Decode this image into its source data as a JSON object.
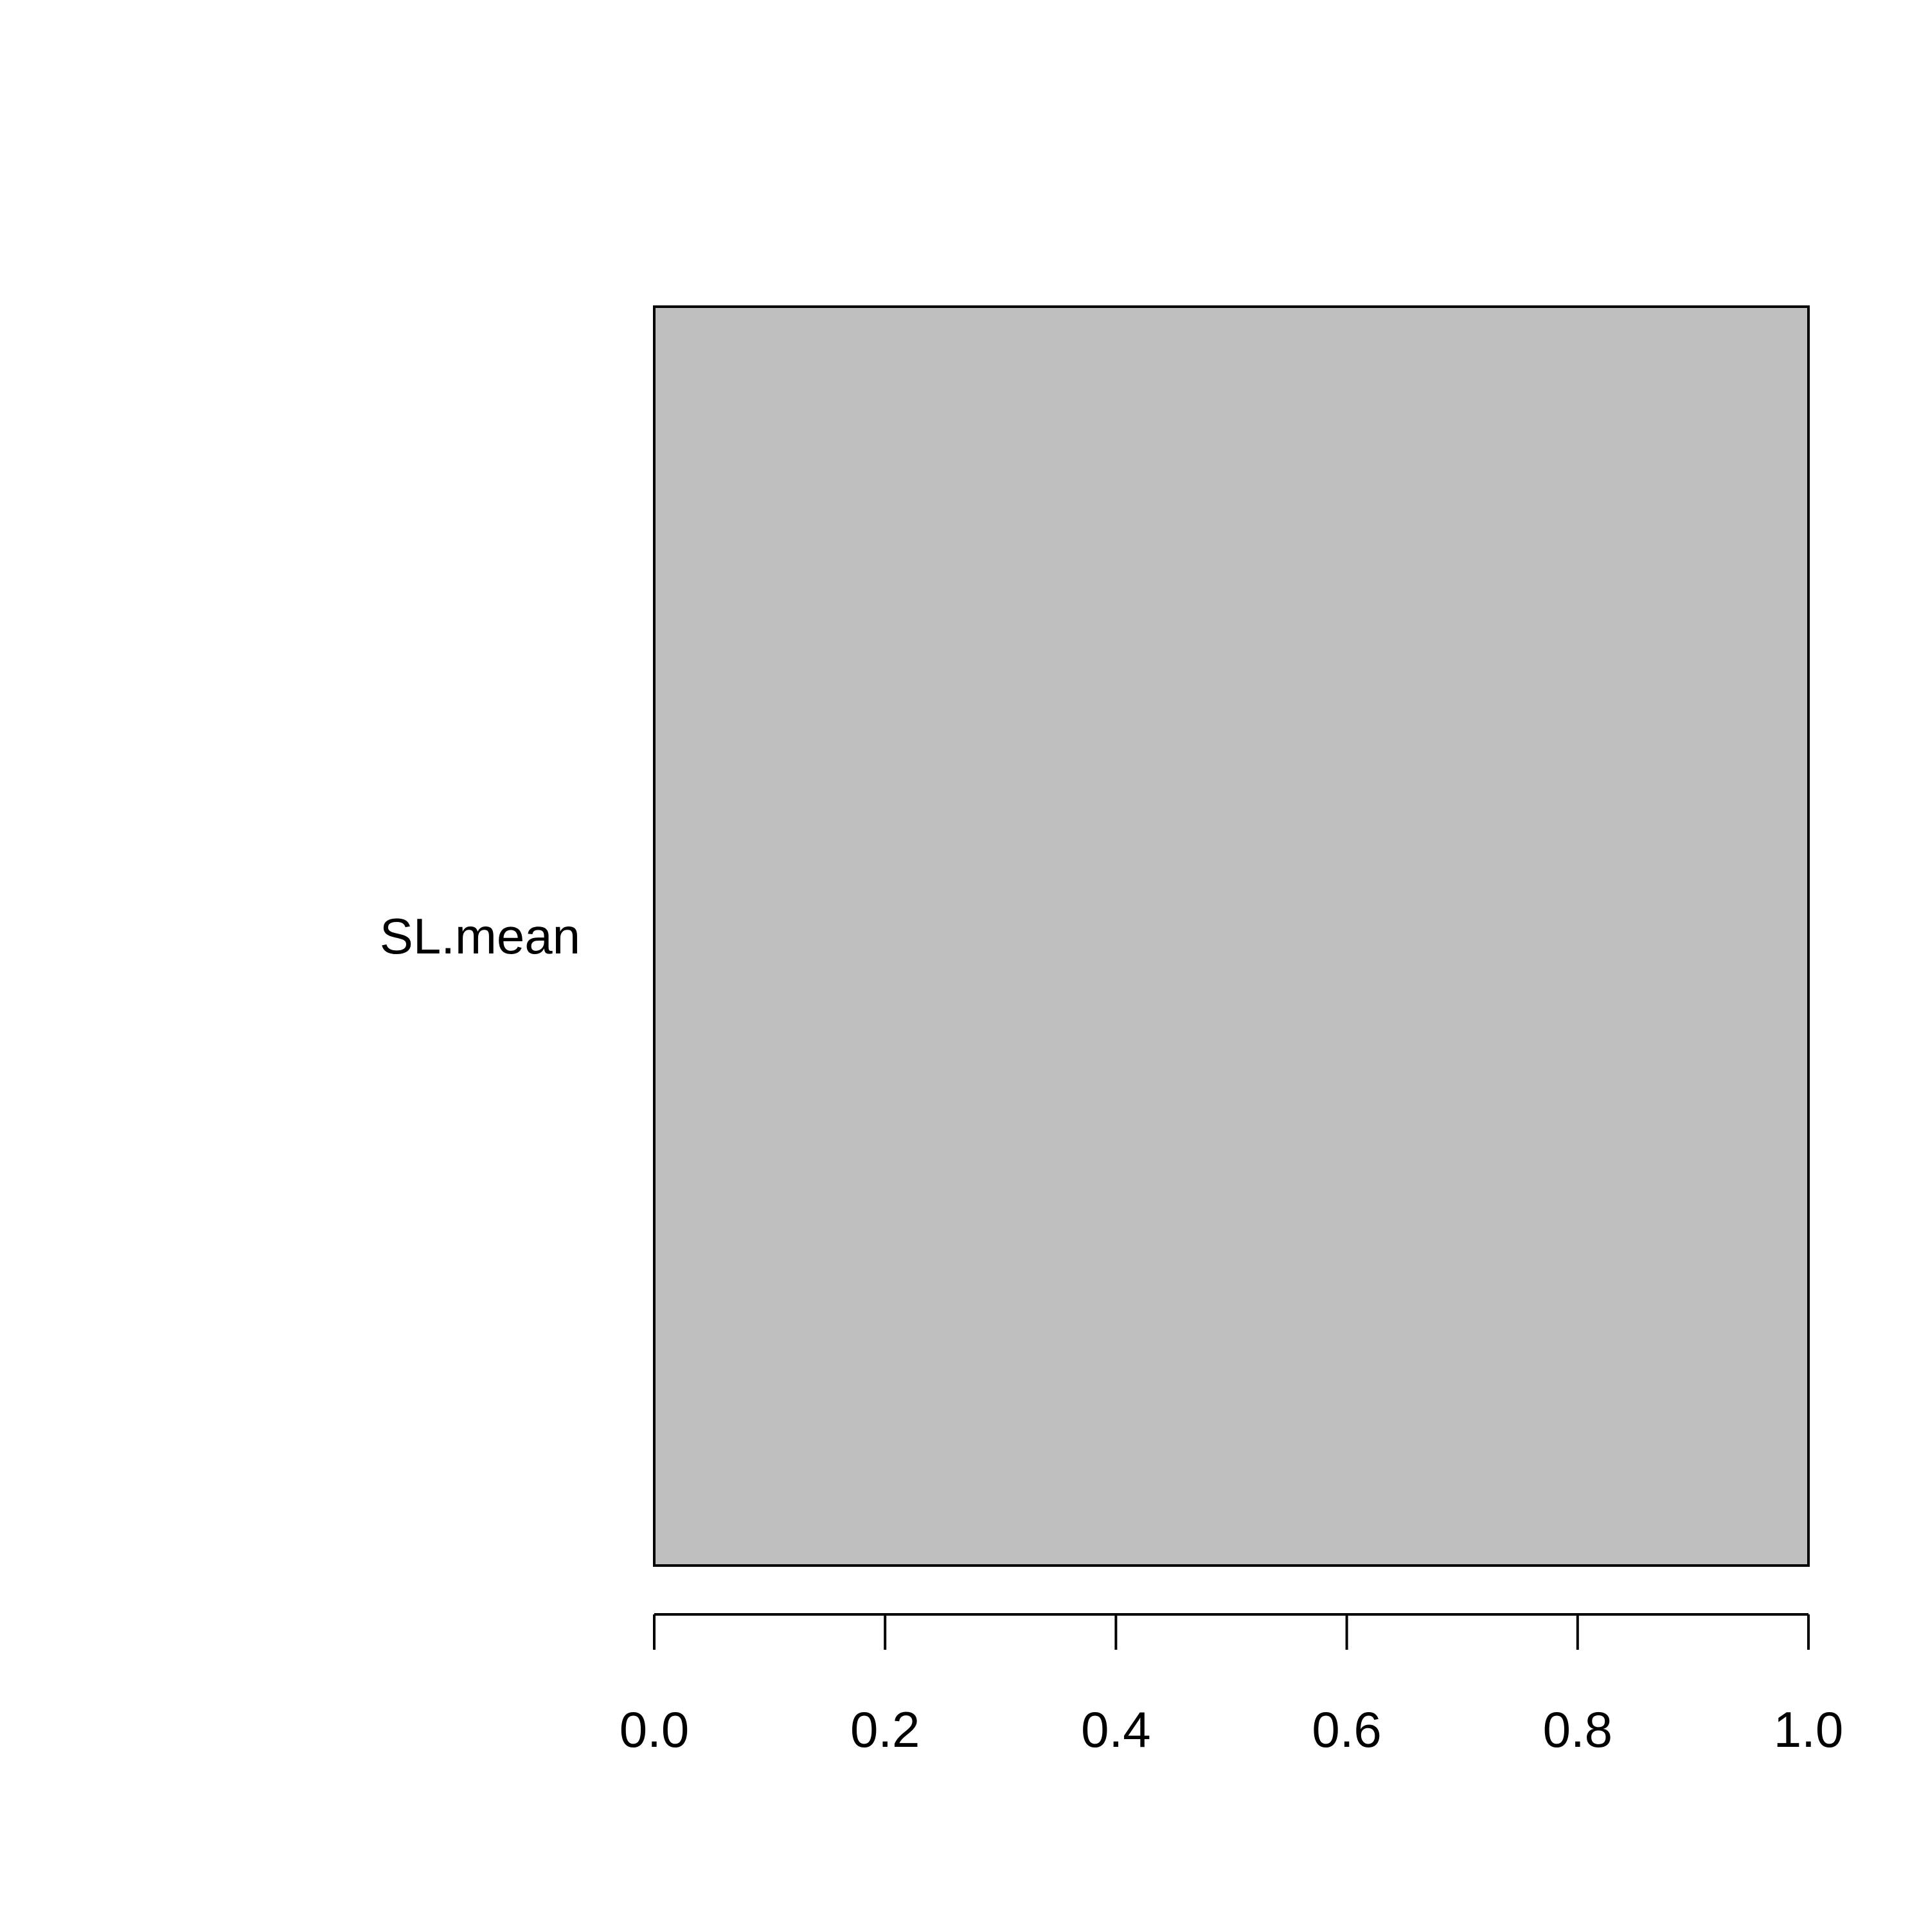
{
  "chart_data": {
    "type": "bar",
    "orientation": "horizontal",
    "categories": [
      "SL.mean"
    ],
    "values": [
      1.0
    ],
    "xlim": [
      0,
      1
    ],
    "x_ticks": [
      0.0,
      0.2,
      0.4,
      0.6,
      0.8,
      1.0
    ],
    "x_tick_labels": [
      "0.0",
      "0.2",
      "0.4",
      "0.6",
      "0.8",
      "1.0"
    ],
    "grid": false,
    "bar_color": "#bebebe",
    "bar_border_color": "#000000"
  }
}
